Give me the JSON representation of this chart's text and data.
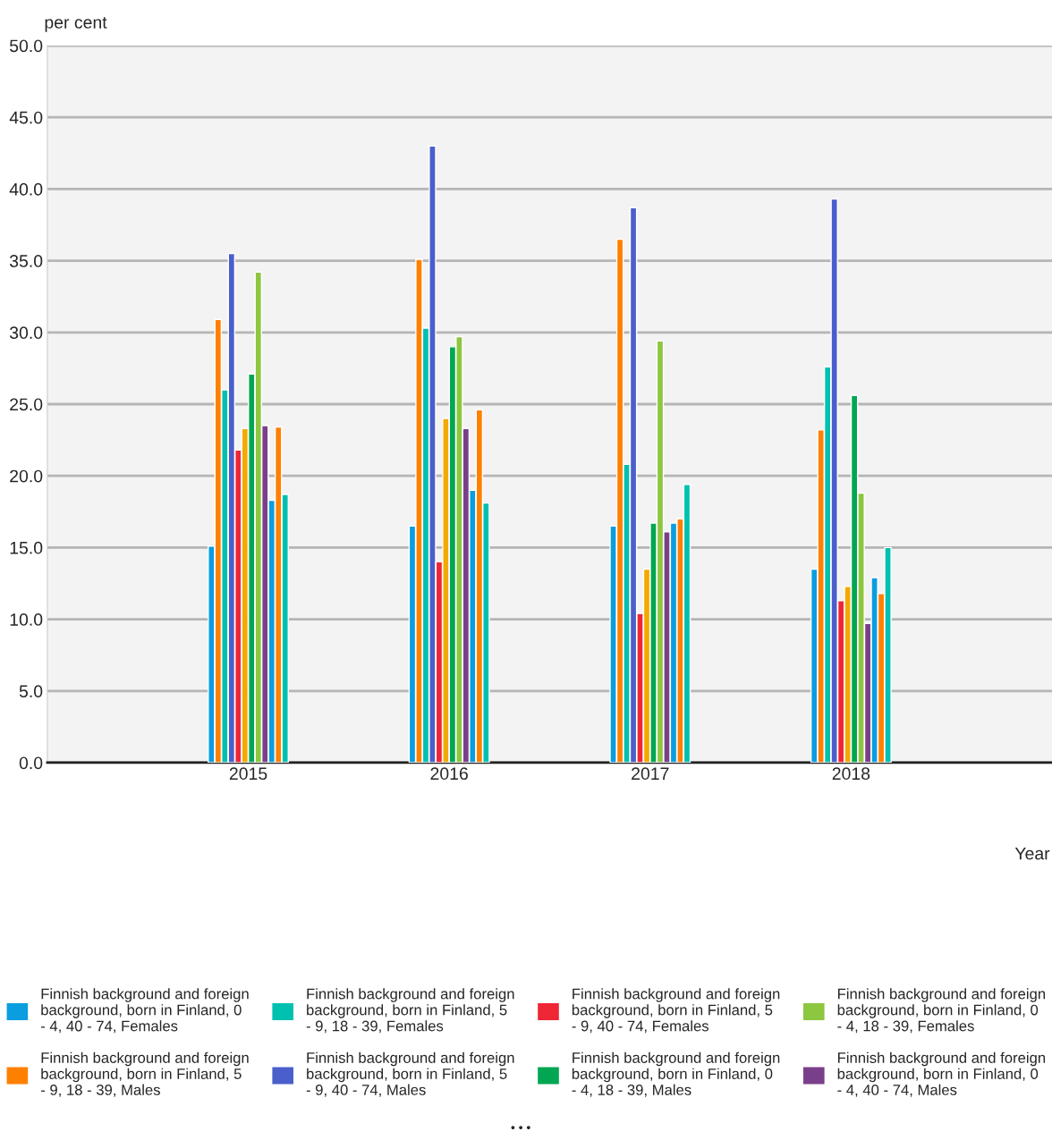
{
  "chart_data": {
    "type": "bar",
    "ylabel": "per cent",
    "xlabel": "Year",
    "categories": [
      "2015",
      "2016",
      "2017",
      "2018"
    ],
    "series": [
      {
        "name": "Finnish background and foreign background, born in Finland, 0 - 4, 40 - 74, Females",
        "color": "#0a9de0",
        "values": [
          15.1,
          16.5,
          16.5,
          13.5
        ]
      },
      {
        "name": "Finnish background and foreign background, born in Finland, 5 - 9, 18 - 39, Males",
        "color": "#ff8000",
        "values": [
          30.9,
          35.1,
          36.5,
          23.2
        ]
      },
      {
        "name": "Finnish background and foreign background, born in Finland, 5 - 9, 18 - 39, Females",
        "color": "#00c0b0",
        "values": [
          26.0,
          30.3,
          20.8,
          27.6
        ]
      },
      {
        "name": "Finnish background and foreign background, born in Finland, 5 - 9, 40 - 74, Males",
        "color": "#4a5fcb",
        "values": [
          35.5,
          43.0,
          38.7,
          39.3
        ]
      },
      {
        "name": "Finnish background and foreign background, born in Finland, 5 - 9, 40 - 74, Females",
        "color": "#ee2636",
        "values": [
          21.8,
          14.0,
          10.4,
          11.3
        ]
      },
      {
        "color": "#f2a900",
        "values": [
          23.3,
          24.0,
          13.5,
          12.3
        ]
      },
      {
        "name": "Finnish background and foreign background, born in Finland, 0 - 4, 18 - 39, Males",
        "color": "#00a651",
        "values": [
          27.1,
          29.0,
          16.7,
          25.6
        ]
      },
      {
        "name": "Finnish background and foreign background, born in Finland, 0 - 4, 18 - 39, Females",
        "color": "#8dc63f",
        "values": [
          34.2,
          29.7,
          29.4,
          18.8
        ]
      },
      {
        "name": "Finnish background and foreign background, born in Finland, 0 - 4, 40 - 74, Males",
        "color": "#7a3f8a",
        "values": [
          23.5,
          23.3,
          16.1,
          9.7
        ]
      },
      {
        "color": "#0a9de0",
        "values": [
          18.3,
          19.0,
          16.7,
          12.9
        ]
      },
      {
        "color": "#ff8000",
        "values": [
          23.4,
          24.6,
          17.0,
          11.8
        ]
      },
      {
        "color": "#00c0b0",
        "values": [
          18.7,
          18.1,
          19.4,
          15.0
        ]
      }
    ],
    "ylim": [
      0,
      50
    ],
    "yticks": [
      {
        "value": 0,
        "label": "0.0"
      },
      {
        "value": 5,
        "label": "5.0"
      },
      {
        "value": 10,
        "label": "10.0"
      },
      {
        "value": 15,
        "label": "15.0"
      },
      {
        "value": 20,
        "label": "20.0"
      },
      {
        "value": 25,
        "label": "25.0"
      },
      {
        "value": 30,
        "label": "30.0"
      },
      {
        "value": 35,
        "label": "35.0"
      },
      {
        "value": 40,
        "label": "40.0"
      },
      {
        "value": 45,
        "label": "45.0"
      },
      {
        "value": 50,
        "label": "50.0"
      }
    ],
    "grid": "y",
    "legend": "bottom",
    "annotations": [
      "• • •"
    ]
  }
}
